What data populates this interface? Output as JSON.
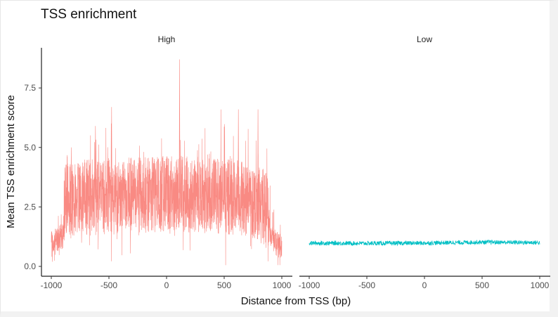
{
  "chart_data": {
    "type": "line",
    "title": "TSS enrichment",
    "xlabel": "Distance from TSS (bp)",
    "ylabel": "Mean TSS enrichment score",
    "xlim": [
      -1000,
      1000
    ],
    "ylim": [
      0,
      8.8
    ],
    "x_ticks": [
      "-1000",
      "-500",
      "0",
      "500",
      "1000"
    ],
    "y_ticks": [
      "0.0",
      "2.5",
      "5.0",
      "7.5"
    ],
    "grid": false,
    "legend": "none",
    "facets": [
      {
        "label": "High",
        "color": "#F8766D",
        "x": [
          -1000,
          -950,
          -900,
          -880,
          -800,
          -600,
          -400,
          -200,
          -100,
          0,
          100,
          200,
          400,
          600,
          800,
          880,
          900,
          950,
          1000
        ],
        "mean": [
          0.9,
          1.1,
          1.3,
          2.8,
          2.9,
          2.9,
          3.0,
          3.0,
          3.0,
          3.1,
          3.1,
          3.0,
          3.0,
          2.9,
          2.7,
          2.4,
          1.4,
          1.0,
          0.8
        ],
        "peaks": [
          {
            "x": 110,
            "y": 8.7
          },
          {
            "x": -480,
            "y": 6.7
          },
          {
            "x": 620,
            "y": 6.6
          },
          {
            "x": -620,
            "y": 5.9
          },
          {
            "x": 790,
            "y": 6.6
          },
          {
            "x": -830,
            "y": 5.0
          }
        ]
      },
      {
        "label": "Low",
        "color": "#00BFC4",
        "x": [
          -1000,
          -500,
          0,
          500,
          1000
        ],
        "mean": [
          0.98,
          0.97,
          0.98,
          1.02,
          1.0
        ]
      }
    ]
  }
}
